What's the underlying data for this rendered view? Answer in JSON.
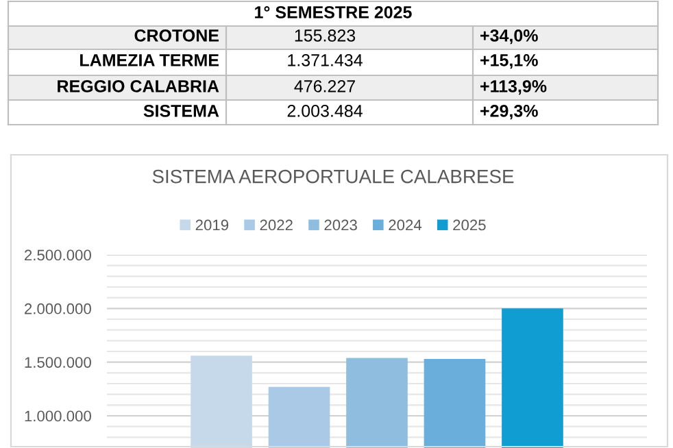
{
  "chart_data": {
    "type": "bar",
    "title": "SISTEMA AEROPORTUALE CALABRESE",
    "categories": [
      null
    ],
    "series": [
      {
        "name": "2019",
        "color": "#c5d9ea",
        "values": [
          1560000
        ]
      },
      {
        "name": "2022",
        "color": "#a9c9e6",
        "values": [
          1270000
        ]
      },
      {
        "name": "2023",
        "color": "#8fbde0",
        "values": [
          1540000
        ]
      },
      {
        "name": "2024",
        "color": "#6aaedb",
        "values": [
          1530000
        ]
      },
      {
        "name": "2025",
        "color": "#109dd2",
        "values": [
          2000000
        ]
      }
    ],
    "ylim": [
      700000,
      2500000
    ],
    "yticks": [
      {
        "value": 800000,
        "label": null
      },
      {
        "value": 900000,
        "label": null
      },
      {
        "value": 1000000,
        "label": "1.000.000"
      },
      {
        "value": 1100000,
        "label": null
      },
      {
        "value": 1200000,
        "label": null
      },
      {
        "value": 1300000,
        "label": null
      },
      {
        "value": 1400000,
        "label": null
      },
      {
        "value": 1500000,
        "label": "1.500.000"
      },
      {
        "value": 1600000,
        "label": null
      },
      {
        "value": 1700000,
        "label": null
      },
      {
        "value": 1800000,
        "label": null
      },
      {
        "value": 1900000,
        "label": null
      },
      {
        "value": 2000000,
        "label": "2.000.000"
      },
      {
        "value": 2100000,
        "label": null
      },
      {
        "value": 2200000,
        "label": null
      },
      {
        "value": 2300000,
        "label": null
      },
      {
        "value": 2400000,
        "label": null
      },
      {
        "value": 2500000,
        "label": "2.500.000"
      }
    ],
    "grid": "y",
    "legend": "top",
    "annotations": [
      "1° SEMESTRE 2025",
      "CROTONE",
      "155.823",
      "+34,0%",
      "LAMEZIA TERME",
      "1.371.434",
      "+15,1%",
      "REGGIO CALABRIA",
      "476.227",
      "+113,9%",
      "SISTEMA",
      "2.003.484",
      "+29,3%"
    ]
  }
}
